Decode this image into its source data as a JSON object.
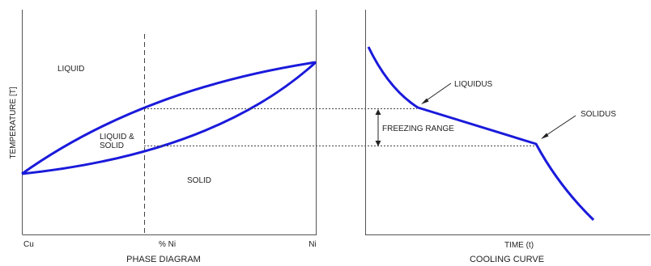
{
  "phase_diagram": {
    "caption": "PHASE DIAGRAM",
    "y_axis_label": "TEMPERATURE [T]",
    "x_left_label": "Cu",
    "x_mid_label": "% Ni",
    "x_right_label": "Ni",
    "region_liquid": "LIQUID",
    "region_mix_line1": "LIQUID &",
    "region_mix_line2": "SOLID",
    "region_solid": "SOLID"
  },
  "cooling_curve": {
    "caption": "COOLING CURVE",
    "x_axis_label": "TIME (t)",
    "liquidus_label": "LIQUIDUS",
    "solidus_label": "SOLIDUS",
    "freezing_range_label": "FREEZING RANGE"
  },
  "colors": {
    "curve": "#1a1adb",
    "axis": "#555555",
    "guide": "#444444"
  }
}
